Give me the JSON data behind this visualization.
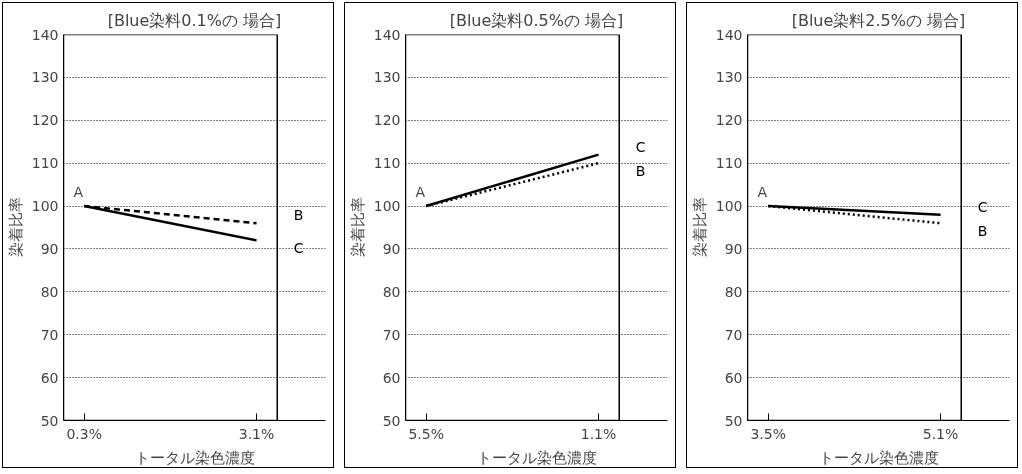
{
  "chart_data": [
    {
      "type": "line",
      "title": "[Blue染料0.1%の 場合]",
      "xlabel": "トータル染色濃度",
      "ylabel": "染着比率",
      "categories": [
        "0.3%",
        "3.1%"
      ],
      "ylim": [
        50,
        140
      ],
      "yticks": [
        50,
        60,
        70,
        80,
        90,
        100,
        110,
        120,
        130,
        140
      ],
      "grid": "y",
      "legend": false,
      "marker": "none",
      "series": [
        {
          "name": "B",
          "color": "#000000",
          "line_style": "dashed",
          "values": [
            100,
            96
          ]
        },
        {
          "name": "C",
          "color": "#000000",
          "line_style": "solid",
          "values": [
            100,
            92
          ]
        }
      ],
      "annotations": [
        {
          "text": "A",
          "x": "0.3%",
          "y": 100
        }
      ]
    },
    {
      "type": "line",
      "title": "[Blue染料0.5%の 場合]",
      "xlabel": "トータル染色濃度",
      "ylabel": "染着比率",
      "categories": [
        "5.5%",
        "1.1%"
      ],
      "ylim": [
        50,
        140
      ],
      "yticks": [
        50,
        60,
        70,
        80,
        90,
        100,
        110,
        120,
        130,
        140
      ],
      "grid": "y",
      "legend": false,
      "marker": "none",
      "series": [
        {
          "name": "C",
          "color": "#000000",
          "line_style": "solid",
          "values": [
            100,
            112
          ]
        },
        {
          "name": "B",
          "color": "#000000",
          "line_style": "dotted",
          "values": [
            100,
            110
          ]
        }
      ],
      "annotations": [
        {
          "text": "A",
          "x": "5.5%",
          "y": 100
        }
      ]
    },
    {
      "type": "line",
      "title": "[Blue染料2.5%の 場合]",
      "xlabel": "トータル染色濃度",
      "ylabel": "染着比率",
      "categories": [
        "3.5%",
        "5.1%"
      ],
      "ylim": [
        50,
        140
      ],
      "yticks": [
        50,
        60,
        70,
        80,
        90,
        100,
        110,
        120,
        130,
        140
      ],
      "grid": "y",
      "legend": false,
      "marker": "none",
      "series": [
        {
          "name": "C",
          "color": "#000000",
          "line_style": "solid",
          "values": [
            100,
            98
          ]
        },
        {
          "name": "B",
          "color": "#000000",
          "line_style": "dotted",
          "values": [
            100,
            96
          ]
        }
      ],
      "annotations": [
        {
          "text": "A",
          "x": "3.5%",
          "y": 100
        }
      ]
    }
  ]
}
